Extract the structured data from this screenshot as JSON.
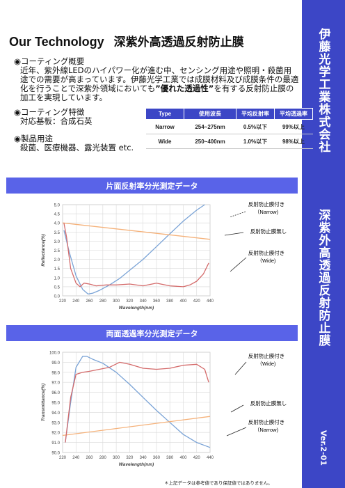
{
  "sidebar": {
    "company": "伊藤光学工業株式会社",
    "product": "深紫外高透過反射防止膜",
    "version": "Ver.2-01"
  },
  "header": {
    "title_en": "Our Technology",
    "title_jp": "深紫外高透過反射防止膜"
  },
  "overview": {
    "heading": "◉コーティング概要",
    "text_before": "近年、紫外線LEDのハイパワー化が進む中、センシング用途や照明・殺菌用途での需要が高まっています。伊藤光学工業では成膜材料及び成膜条件の最適化を行うことで深紫外領域においても",
    "emphasis": "”優れた透過性”",
    "text_after": "を有する反射防止膜の加工を実現しています。"
  },
  "coating": {
    "heading": "◉コーティング特徴",
    "text": "対応基板：合成石英"
  },
  "usage": {
    "heading": "◉製品用途",
    "text": "殺菌、医療機器、露光装置 etc."
  },
  "spec_table": {
    "headers": [
      "Type",
      "使用波長",
      "平均反射率",
      "平均透過率"
    ],
    "rows": [
      [
        "Narrow",
        "254~275nm",
        "0.5%以下",
        "99%以上"
      ],
      [
        "Wide",
        "250~400nm",
        "1.0%以下",
        "98%以上"
      ]
    ]
  },
  "section1_title": "片面反射率分光測定データ",
  "section2_title": "両面透過率分光測定データ",
  "colors": {
    "accent": "#3c46c6",
    "band": "#5963e8",
    "narrow": "#7aa3d6",
    "wide": "#d46a6a",
    "uncoated": "#f5b179"
  },
  "chart_data": [
    {
      "type": "line",
      "xlabel": "Wavelength(nm)",
      "ylabel": "Reflectance(%)",
      "xlim": [
        220,
        440
      ],
      "ylim": [
        0.0,
        5.0
      ],
      "xticks": [
        220,
        240,
        260,
        280,
        300,
        320,
        340,
        360,
        380,
        400,
        420,
        440
      ],
      "yticks": [
        0.0,
        0.5,
        1.0,
        1.5,
        2.0,
        2.5,
        3.0,
        3.5,
        4.0,
        4.5,
        5.0
      ],
      "ytick_labels": [
        "0.0",
        "0.5",
        "1.0",
        "1.5",
        "2.0",
        "2.5",
        "3.0",
        "3.5",
        "4.0",
        "4.5",
        "5.0"
      ],
      "grid": true,
      "series": [
        {
          "color": "#7aa3d6",
          "x": [
            222,
            230,
            240,
            250,
            258,
            265,
            275,
            290,
            305,
            320,
            340,
            360,
            380,
            400,
            420,
            432
          ],
          "y": [
            3.6,
            2.4,
            1.1,
            0.35,
            0.1,
            0.15,
            0.3,
            0.6,
            0.95,
            1.4,
            2.0,
            2.7,
            3.4,
            4.1,
            4.7,
            5.0
          ]
        },
        {
          "color": "#f5b179",
          "x": [
            220,
            440
          ],
          "y": [
            4.0,
            3.1
          ]
        },
        {
          "color": "#d46a6a",
          "x": [
            222,
            226,
            232,
            240,
            246,
            252,
            260,
            270,
            285,
            300,
            320,
            340,
            360,
            380,
            400,
            410,
            420,
            430,
            438
          ],
          "y": [
            4.0,
            3.2,
            1.5,
            0.7,
            0.5,
            0.7,
            0.65,
            0.55,
            0.6,
            0.6,
            0.65,
            0.55,
            0.7,
            0.55,
            0.5,
            0.6,
            0.8,
            1.2,
            1.8
          ]
        }
      ],
      "annotations": [
        {
          "text": "反射防止膜付き",
          "sub": "（Narrow)"
        },
        {
          "text": "反射防止膜無し",
          "sub": ""
        },
        {
          "text": "反射防止膜付き",
          "sub": "（Wide)"
        }
      ]
    },
    {
      "type": "line",
      "xlabel": "Wavelength(nm)",
      "ylabel": "Transmittance(%)",
      "xlim": [
        220,
        440
      ],
      "ylim": [
        90.0,
        100.0
      ],
      "xticks": [
        220,
        240,
        260,
        280,
        300,
        320,
        340,
        360,
        380,
        400,
        420,
        440
      ],
      "yticks": [
        90.0,
        91.0,
        92.0,
        93.0,
        94.0,
        95.0,
        96.0,
        97.0,
        98.0,
        99.0,
        100.0
      ],
      "ytick_labels": [
        "90.0",
        "91.0",
        "92.0",
        "93.0",
        "94.0",
        "95.0",
        "96.0",
        "97.0",
        "98.0",
        "99.0",
        "100.0"
      ],
      "grid": true,
      "series": [
        {
          "color": "#7aa3d6",
          "x": [
            224,
            232,
            240,
            250,
            256,
            265,
            280,
            300,
            320,
            340,
            360,
            380,
            400,
            420,
            440
          ],
          "y": [
            91.0,
            95.0,
            98.5,
            99.6,
            99.6,
            99.3,
            98.9,
            98.0,
            96.8,
            95.5,
            94.2,
            93.0,
            91.8,
            91.0,
            90.5
          ]
        },
        {
          "color": "#f5b179",
          "x": [
            220,
            440
          ],
          "y": [
            91.7,
            93.6
          ]
        },
        {
          "color": "#d46a6a",
          "x": [
            224,
            232,
            240,
            250,
            260,
            275,
            290,
            305,
            320,
            340,
            360,
            380,
            400,
            420,
            432,
            438
          ],
          "y": [
            91.0,
            95.5,
            97.8,
            98.0,
            98.1,
            98.3,
            98.5,
            99.0,
            98.8,
            98.4,
            98.3,
            98.4,
            98.7,
            98.8,
            98.3,
            97.0
          ]
        }
      ],
      "annotations": [
        {
          "text": "反射防止膜付き",
          "sub": "（Wide)"
        },
        {
          "text": "反射防止膜無し",
          "sub": ""
        },
        {
          "text": "反射防止膜付き",
          "sub": "（Narrow)"
        }
      ]
    }
  ],
  "footnote": "＊上記データは参考値であり保証値ではありません。"
}
